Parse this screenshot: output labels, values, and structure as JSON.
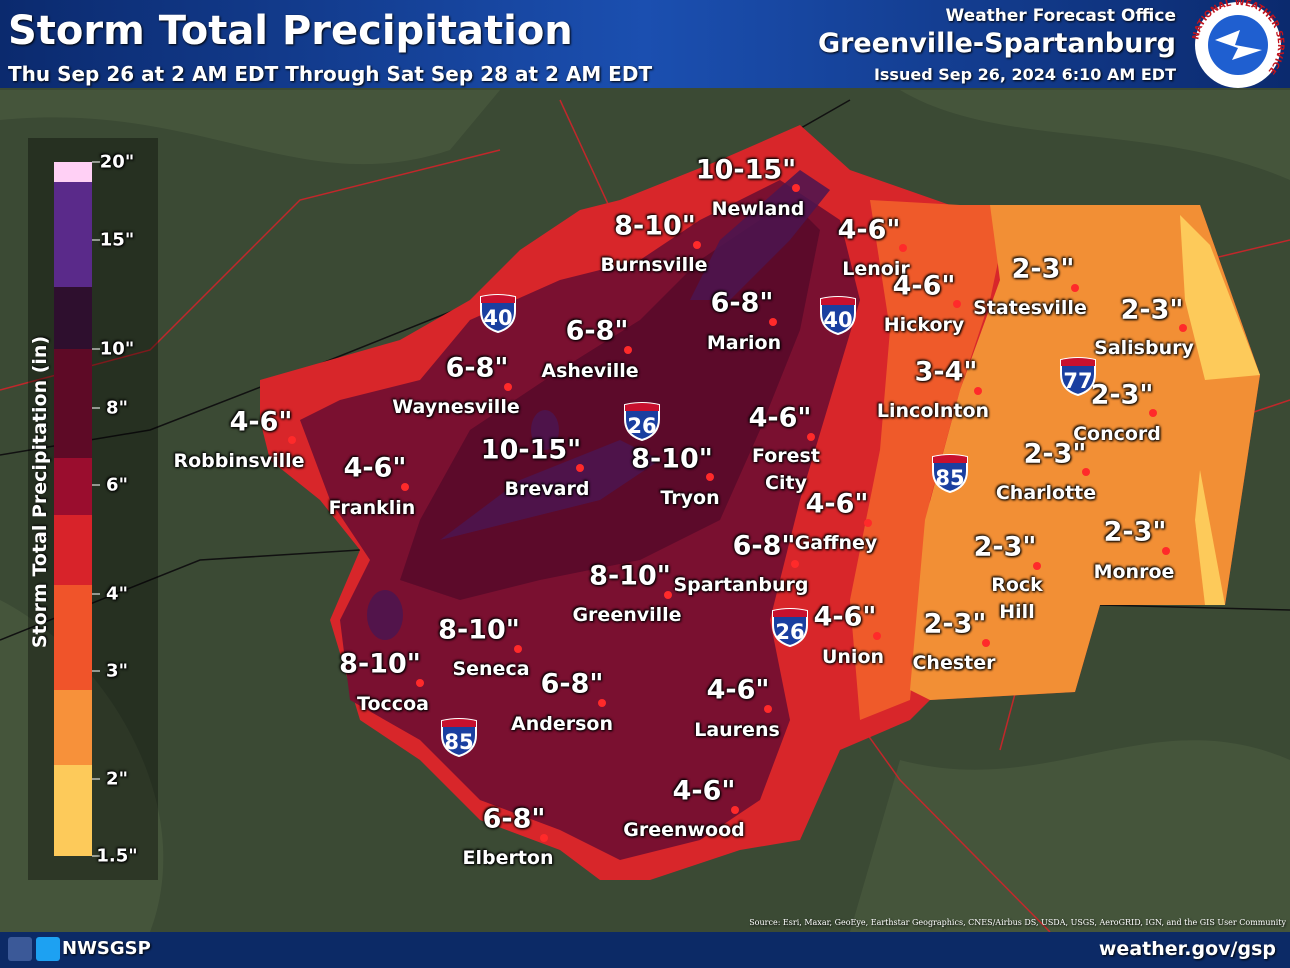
{
  "header": {
    "title": "Storm Total Precipitation",
    "subtitle": "Thu Sep 26 at 2 AM EDT Through Sat Sep 28 at 2 AM EDT",
    "office_label": "Weather Forecast Office",
    "office": "Greenville-Spartanburg",
    "issued": "Issued Sep 26, 2024 6:10 AM EDT",
    "logo_text": "NATIONAL WEATHER SERVICE"
  },
  "legend": {
    "title": "Storm Total Precipitation (in)",
    "labels": [
      "20\"",
      "15\"",
      "10\"",
      "8\"",
      "6\"",
      "4\"",
      "3\"",
      "2\"",
      "1.5\""
    ]
  },
  "locations": [
    {
      "amount": "10-15\"",
      "name": "Newland"
    },
    {
      "amount": "8-10\"",
      "name": "Burnsville"
    },
    {
      "amount": "4-6\"",
      "name": "Lenoir"
    },
    {
      "amount": "2-3\"",
      "name": "Statesville"
    },
    {
      "amount": "4-6\"",
      "name": "Hickory"
    },
    {
      "amount": "2-3\"",
      "name": "Salisbury"
    },
    {
      "amount": "6-8\"",
      "name": "Marion"
    },
    {
      "amount": "6-8\"",
      "name": "Asheville"
    },
    {
      "amount": "3-4\"",
      "name": "Lincolnton"
    },
    {
      "amount": "2-3\"",
      "name": "Concord"
    },
    {
      "amount": "6-8\"",
      "name": "Waynesville"
    },
    {
      "amount": "4-6\"",
      "name": "Robbinsville"
    },
    {
      "amount": "4-6\"",
      "name": "Forest City"
    },
    {
      "amount": "10-15\"",
      "name": "Brevard"
    },
    {
      "amount": "8-10\"",
      "name": "Tryon"
    },
    {
      "amount": "2-3\"",
      "name": "Charlotte"
    },
    {
      "amount": "4-6\"",
      "name": "Franklin"
    },
    {
      "amount": "4-6\"",
      "name": "Gaffney"
    },
    {
      "amount": "6-8\"",
      "name": "Spartanburg"
    },
    {
      "amount": "2-3\"",
      "name": "Rock Hill"
    },
    {
      "amount": "2-3\"",
      "name": "Monroe"
    },
    {
      "amount": "8-10\"",
      "name": "Greenville"
    },
    {
      "amount": "4-6\"",
      "name": "Union"
    },
    {
      "amount": "2-3\"",
      "name": "Chester"
    },
    {
      "amount": "8-10\"",
      "name": "Seneca"
    },
    {
      "amount": "8-10\"",
      "name": "Toccoa"
    },
    {
      "amount": "6-8\"",
      "name": "Anderson"
    },
    {
      "amount": "4-6\"",
      "name": "Laurens"
    },
    {
      "amount": "4-6\"",
      "name": "Greenwood"
    },
    {
      "amount": "6-8\"",
      "name": "Elberton"
    }
  ],
  "interstates": [
    "40",
    "40",
    "26",
    "26",
    "85",
    "85",
    "77"
  ],
  "source": "Source: Esri, Maxar, GeoEye, Earthstar Geographics, CNES/Airbus DS, USDA, USGS, AeroGRID, IGN, and the GIS User Community",
  "footer": {
    "handle": "NWSGSP",
    "url": "weather.gov/gsp"
  }
}
